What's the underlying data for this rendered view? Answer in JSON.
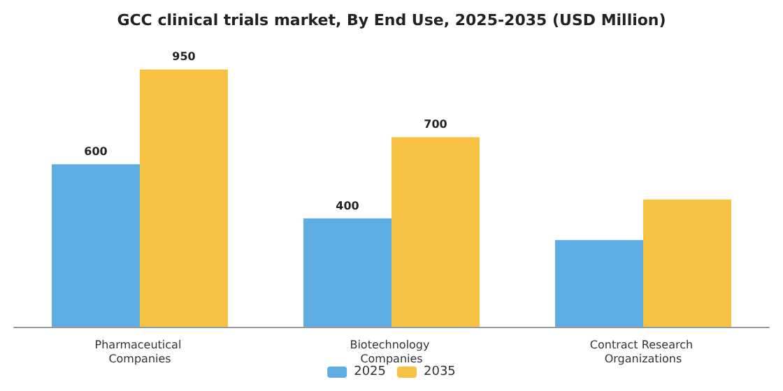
{
  "chart_data": {
    "type": "bar",
    "title": "GCC clinical trials market, By End Use, 2025-2035 (USD Million)",
    "categories": [
      "Pharmaceutical Companies",
      "Biotechnology Companies",
      "Contract Research Organizations"
    ],
    "series": [
      {
        "name": "2025",
        "color": "#5dade2",
        "values": [
          600,
          400,
          320
        ],
        "value_labels": [
          "600",
          "400",
          null
        ]
      },
      {
        "name": "2035",
        "color": "#f7c143",
        "values": [
          950,
          700,
          470
        ],
        "value_labels": [
          "950",
          "700",
          null
        ]
      }
    ],
    "legend": "bottom"
  }
}
